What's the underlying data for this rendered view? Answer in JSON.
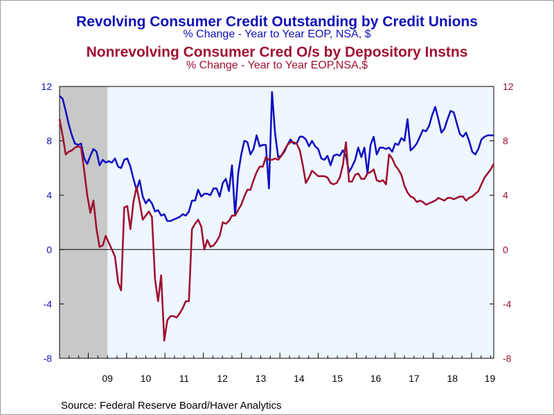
{
  "titles": {
    "series1_title": "Revolving Consumer Credit Outstanding by Credit Unions",
    "series1_subtitle": "% Change - Year to Year     EOP, NSA, $",
    "series2_title": "Nonrevolving Consumer Cred O/s by Depository Instns",
    "series2_subtitle": "% Change - Year to Year     EOP,NSA,$"
  },
  "source": "Source:  Federal Reserve Board/Haver Analytics",
  "colors": {
    "series1": "#1010c0",
    "series2": "#a01030",
    "plot_background": "#eef6ff",
    "recession_shade": "#c8c8c8",
    "left_axis": "#1010b8",
    "right_axis": "#a01030"
  },
  "chart_data": {
    "type": "line",
    "x_start": 2008.25,
    "x_end": 2019.58,
    "xlim": [
      2008.25,
      2019.58
    ],
    "ylim_left": [
      -8,
      12
    ],
    "ylim_right": [
      -8,
      12
    ],
    "yticks": [
      -8,
      -4,
      0,
      4,
      8,
      12
    ],
    "xtick_labels": [
      "09",
      "10",
      "11",
      "12",
      "13",
      "14",
      "15",
      "16",
      "17",
      "18",
      "19"
    ],
    "recession": [
      2008.25,
      2009.5
    ],
    "zero_line": true,
    "grid": false,
    "series": [
      {
        "name": "Revolving Consumer Credit Outstanding by Credit Unions",
        "axis": "left",
        "values": [
          11.3,
          11.1,
          10.2,
          9.2,
          8.4,
          7.8,
          7.7,
          7.8,
          6.7,
          6.3,
          6.9,
          7.4,
          7.2,
          6.2,
          6.6,
          6.4,
          6.5,
          6.4,
          6.7,
          6.1,
          6.0,
          6.6,
          6.7,
          6.1,
          5.2,
          4.4,
          5.1,
          3.9,
          3.4,
          3.7,
          3.4,
          2.8,
          2.9,
          2.5,
          2.6,
          2.1,
          2.1,
          2.2,
          2.3,
          2.4,
          2.6,
          2.5,
          2.8,
          3.6,
          3.6,
          4.4,
          3.9,
          4.1,
          4.1,
          4.0,
          4.5,
          4.5,
          3.9,
          4.9,
          5.2,
          4.3,
          6.2,
          2.5,
          5.6,
          7.0,
          8.0,
          7.9,
          7.0,
          7.4,
          8.4,
          7.6,
          7.7,
          7.7,
          4.5,
          11.6,
          8.5,
          6.8,
          6.9,
          7.2,
          7.7,
          8.1,
          7.8,
          7.8,
          8.3,
          8.3,
          8.1,
          7.6,
          8.0,
          7.6,
          7.4,
          6.7,
          6.6,
          6.9,
          6.2,
          6.9,
          7.0,
          6.9,
          7.3,
          6.9,
          5.7,
          6.1,
          6.6,
          7.5,
          6.8,
          7.5,
          5.6,
          7.7,
          8.3,
          7.0,
          7.5,
          7.5,
          7.4,
          7.5,
          7.2,
          7.8,
          7.7,
          8.2,
          8.0,
          9.6,
          7.3,
          7.5,
          7.8,
          8.3,
          8.8,
          8.7,
          9.1,
          9.9,
          10.5,
          9.6,
          8.6,
          8.9,
          9.6,
          10.2,
          10.1,
          9.3,
          8.5,
          8.3,
          8.6,
          8.0,
          7.2,
          7.0,
          7.4,
          8.1,
          8.3,
          8.4,
          8.4,
          8.4
        ]
      },
      {
        "name": "Nonrevolving Consumer Cred O/s by Depository Instns",
        "axis": "right",
        "values": [
          9.6,
          8.4,
          7.0,
          7.2,
          7.3,
          7.5,
          7.6,
          7.5,
          5.8,
          4.0,
          2.7,
          3.6,
          1.5,
          0.2,
          0.3,
          1.0,
          0.5,
          0.0,
          -0.5,
          -2.4,
          -3.0,
          3.1,
          3.2,
          1.5,
          3.5,
          4.6,
          3.5,
          2.2,
          2.5,
          2.8,
          2.4,
          -2.2,
          -3.8,
          -1.9,
          -6.7,
          -5.2,
          -4.9,
          -4.9,
          -5.0,
          -4.7,
          -4.3,
          -3.8,
          -3.8,
          1.5,
          1.9,
          2.2,
          1.7,
          0.0,
          0.7,
          0.2,
          0.3,
          0.6,
          1.0,
          2.0,
          1.9,
          2.1,
          2.5,
          2.5,
          2.9,
          3.3,
          3.9,
          4.4,
          4.4,
          5.1,
          5.7,
          6.1,
          6.1,
          6.8,
          6.6,
          6.6,
          6.7,
          6.6,
          6.9,
          7.3,
          7.7,
          7.9,
          7.9,
          7.8,
          7.3,
          6.2,
          4.9,
          5.3,
          5.8,
          5.6,
          5.4,
          5.4,
          5.4,
          5.3,
          4.9,
          4.8,
          4.9,
          5.3,
          6.2,
          7.9,
          5.0,
          5.0,
          5.5,
          5.6,
          5.2,
          5.2,
          5.6,
          5.7,
          5.9,
          5.1,
          5.0,
          5.1,
          4.8,
          7.0,
          6.7,
          6.2,
          5.9,
          5.5,
          4.7,
          4.2,
          3.9,
          3.8,
          3.5,
          3.6,
          3.5,
          3.3,
          3.4,
          3.5,
          3.6,
          3.8,
          3.7,
          3.6,
          3.8,
          3.8,
          3.7,
          3.8,
          3.9,
          3.9,
          3.6,
          3.8,
          3.9,
          4.1,
          4.3,
          4.8,
          5.3,
          5.6,
          5.9,
          6.3
        ]
      }
    ]
  }
}
